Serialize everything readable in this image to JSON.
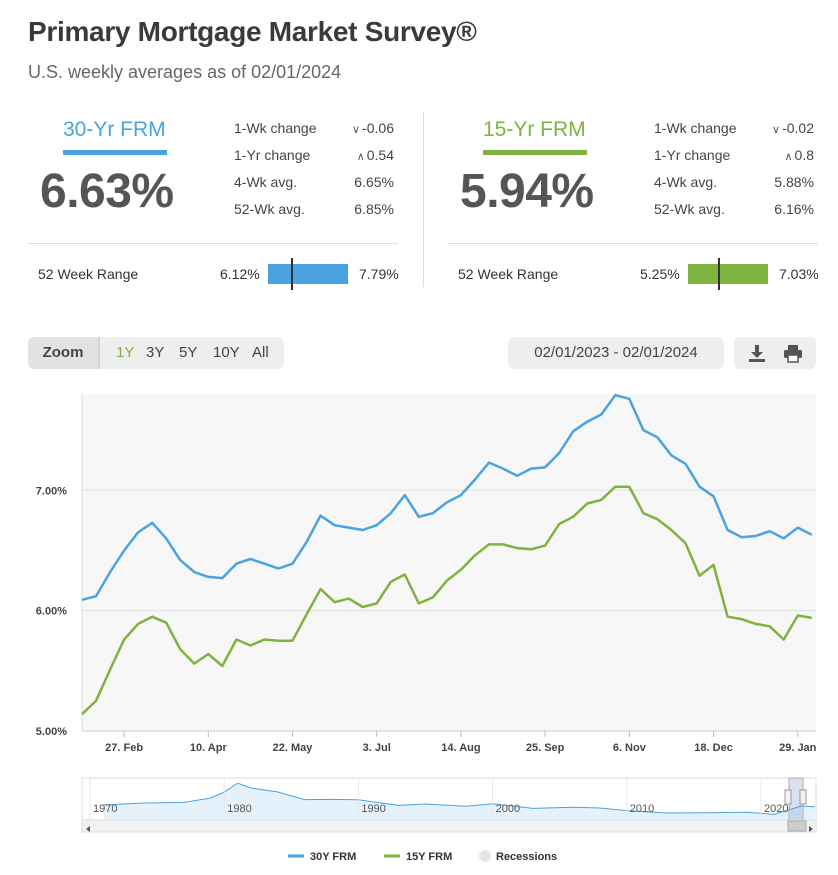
{
  "header": {
    "title": "Primary Mortgage Market Survey®",
    "subtitle": "U.S. weekly averages as of 02/01/2024"
  },
  "colors": {
    "frm30": "#4aa3e0",
    "frm15": "#7fb33f"
  },
  "rates": [
    {
      "name": "30-Yr FRM",
      "value": "6.63%",
      "stats": [
        {
          "label": "1-Wk change",
          "value": "-0.06",
          "arrow": "down"
        },
        {
          "label": "1-Yr change",
          "value": "0.54",
          "arrow": "up"
        },
        {
          "label": "4-Wk avg.",
          "value": "6.65%",
          "arrow": ""
        },
        {
          "label": "52-Wk avg.",
          "value": "6.85%",
          "arrow": ""
        }
      ],
      "range_label": "52 Week Range",
      "range_min": "6.12%",
      "range_max": "7.79%",
      "current_in_range": 0.306
    },
    {
      "name": "15-Yr FRM",
      "value": "5.94%",
      "stats": [
        {
          "label": "1-Wk change",
          "value": "-0.02",
          "arrow": "down"
        },
        {
          "label": "1-Yr change",
          "value": "0.8",
          "arrow": "up"
        },
        {
          "label": "4-Wk avg.",
          "value": "5.88%",
          "arrow": ""
        },
        {
          "label": "52-Wk avg.",
          "value": "6.16%",
          "arrow": ""
        }
      ],
      "range_label": "52 Week Range",
      "range_min": "5.25%",
      "range_max": "7.03%",
      "current_in_range": 0.388
    }
  ],
  "toolbar": {
    "zoom_label": "Zoom",
    "zoom_options": [
      "1Y",
      "3Y",
      "5Y",
      "10Y",
      "All"
    ],
    "active_zoom": "1Y",
    "date_range": "02/01/2023 - 02/01/2024"
  },
  "chart_data": {
    "type": "line",
    "x_ticks": [
      "27. Feb",
      "10. Apr",
      "22. May",
      "3. Jul",
      "14. Aug",
      "25. Sep",
      "6. Nov",
      "18. Dec",
      "29. Jan"
    ],
    "y_ticks": [
      "5.00%",
      "6.00%",
      "7.00%"
    ],
    "ylim": [
      5.0,
      7.8
    ],
    "x_range_weeks": [
      0,
      52.3
    ],
    "x_tick_weeks": [
      3,
      9,
      15,
      21,
      27,
      33,
      39,
      45,
      51
    ],
    "series": [
      {
        "name": "30Y FRM",
        "values": [
          6.09,
          6.12,
          6.32,
          6.5,
          6.65,
          6.73,
          6.6,
          6.42,
          6.32,
          6.28,
          6.27,
          6.39,
          6.43,
          6.39,
          6.35,
          6.39,
          6.57,
          6.79,
          6.71,
          6.69,
          6.67,
          6.71,
          6.81,
          6.96,
          6.78,
          6.81,
          6.9,
          6.96,
          7.09,
          7.23,
          7.18,
          7.12,
          7.18,
          7.19,
          7.31,
          7.49,
          7.57,
          7.63,
          7.79,
          7.76,
          7.5,
          7.44,
          7.29,
          7.22,
          7.03,
          6.95,
          6.67,
          6.61,
          6.62,
          6.66,
          6.6,
          6.69,
          6.63
        ]
      },
      {
        "name": "15Y FRM",
        "values": [
          5.14,
          5.25,
          5.51,
          5.76,
          5.89,
          5.95,
          5.9,
          5.68,
          5.56,
          5.64,
          5.54,
          5.76,
          5.71,
          5.76,
          5.75,
          5.75,
          5.97,
          6.18,
          6.07,
          6.1,
          6.03,
          6.06,
          6.24,
          6.3,
          6.06,
          6.11,
          6.25,
          6.34,
          6.46,
          6.55,
          6.55,
          6.52,
          6.51,
          6.54,
          6.72,
          6.78,
          6.89,
          6.92,
          7.03,
          7.03,
          6.81,
          6.76,
          6.67,
          6.56,
          6.29,
          6.38,
          5.95,
          5.93,
          5.89,
          5.87,
          5.76,
          5.96,
          5.94
        ]
      }
    ],
    "navigator": {
      "labels": [
        "1970",
        "1980",
        "1990",
        "2000",
        "2010",
        "2020"
      ],
      "years": [
        1970,
        1980,
        1990,
        2000,
        2010,
        2020
      ],
      "x_range_years": [
        1969.4,
        2024.1
      ],
      "series": [
        {
          "year": 1971,
          "value": 7.5
        },
        {
          "year": 1974,
          "value": 8.5
        },
        {
          "year": 1977,
          "value": 8.8
        },
        {
          "year": 1979,
          "value": 11.0
        },
        {
          "year": 1980,
          "value": 14.0
        },
        {
          "year": 1981,
          "value": 18.4
        },
        {
          "year": 1982,
          "value": 16.0
        },
        {
          "year": 1984,
          "value": 14.0
        },
        {
          "year": 1986,
          "value": 10.2
        },
        {
          "year": 1988,
          "value": 10.3
        },
        {
          "year": 1990,
          "value": 10.1
        },
        {
          "year": 1993,
          "value": 7.3
        },
        {
          "year": 1995,
          "value": 8.0
        },
        {
          "year": 1998,
          "value": 6.9
        },
        {
          "year": 2000,
          "value": 8.1
        },
        {
          "year": 2003,
          "value": 5.8
        },
        {
          "year": 2006,
          "value": 6.4
        },
        {
          "year": 2008,
          "value": 6.0
        },
        {
          "year": 2010,
          "value": 4.7
        },
        {
          "year": 2013,
          "value": 3.5
        },
        {
          "year": 2016,
          "value": 3.6
        },
        {
          "year": 2019,
          "value": 3.9
        },
        {
          "year": 2021,
          "value": 2.8
        },
        {
          "year": 2023,
          "value": 7.0
        },
        {
          "year": 2024,
          "value": 6.6
        }
      ]
    },
    "legend": [
      {
        "name": "30Y FRM",
        "color": "#4aa3e0",
        "shape": "line"
      },
      {
        "name": "15Y FRM",
        "color": "#7fb33f",
        "shape": "line"
      },
      {
        "name": "Recessions",
        "color": "#e4e4e4",
        "shape": "dot"
      }
    ]
  }
}
